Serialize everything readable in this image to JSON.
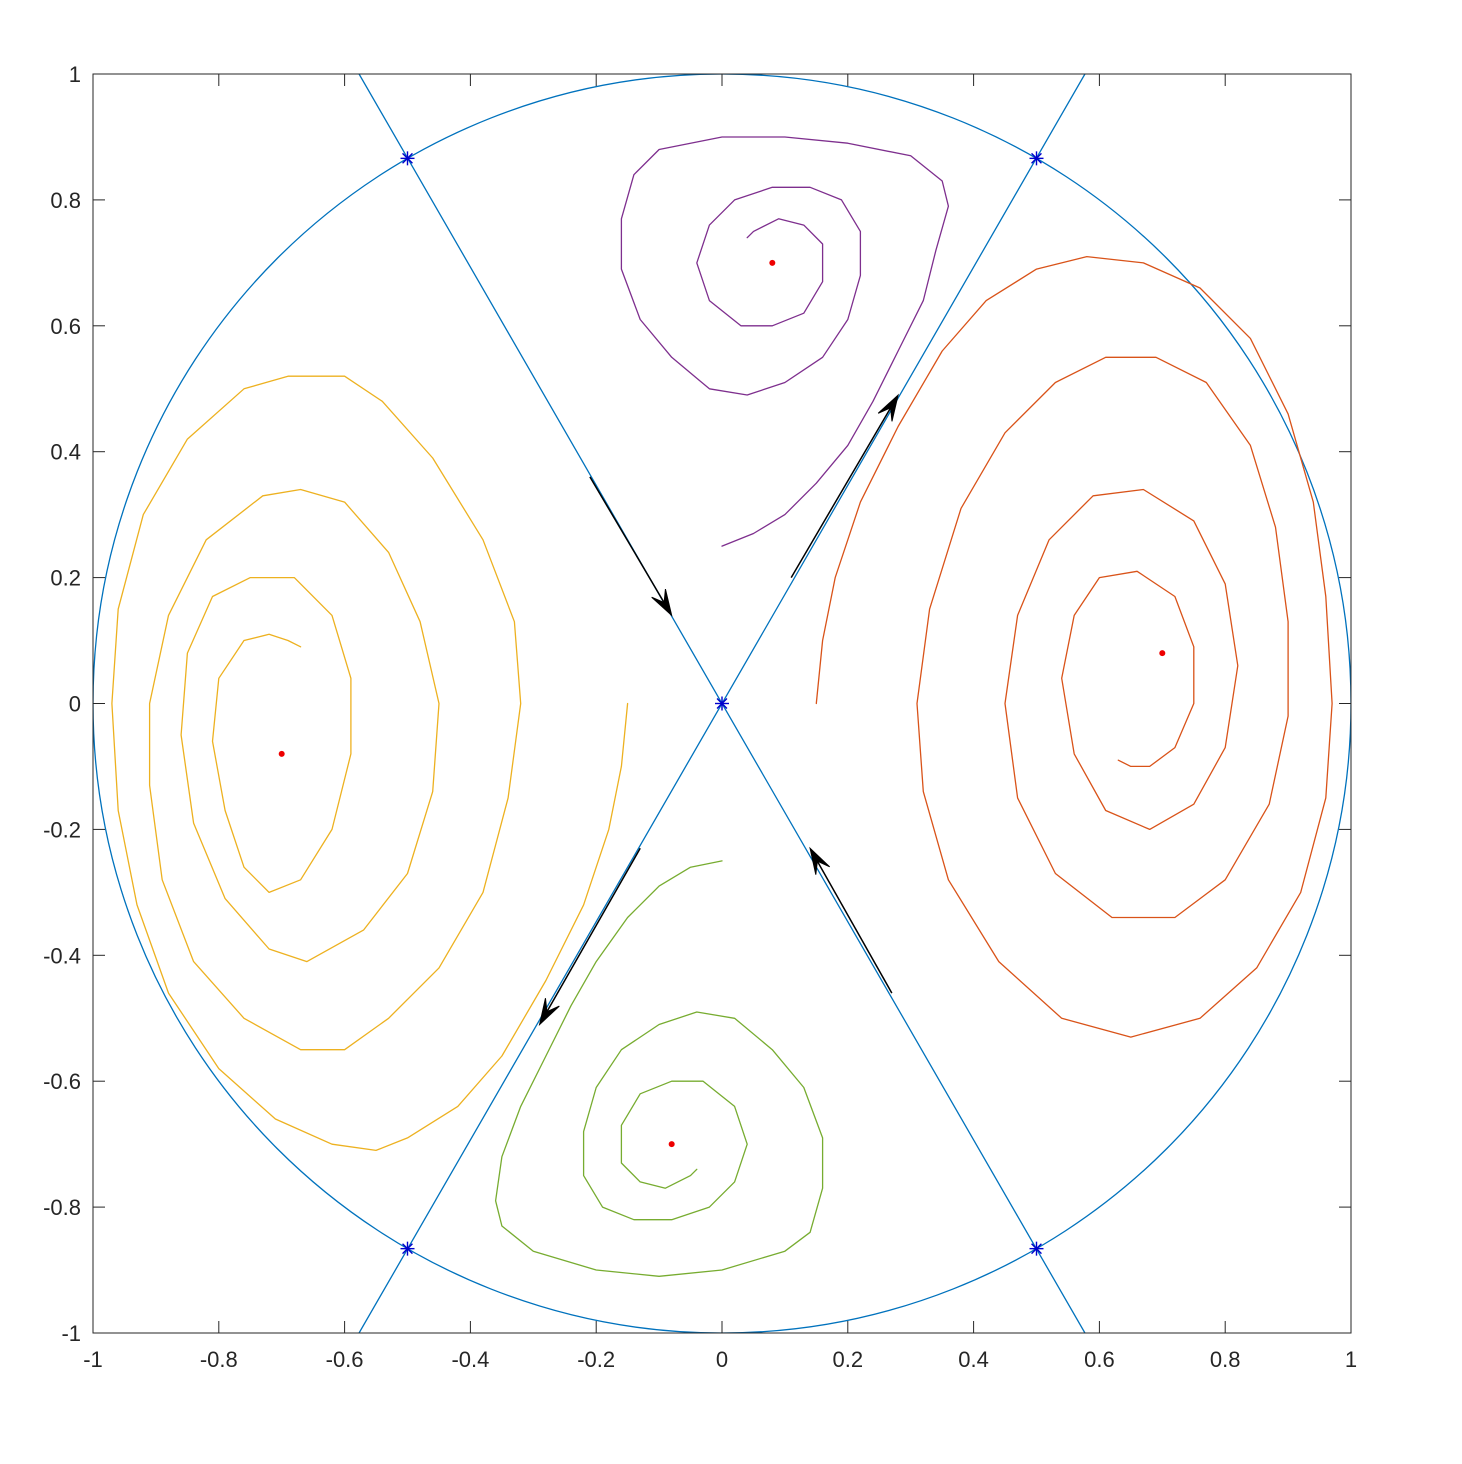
{
  "chart_data": {
    "type": "line",
    "title": "",
    "xlabel": "",
    "ylabel": "",
    "xlim": [
      -1,
      1
    ],
    "ylim": [
      -1,
      1
    ],
    "grid": false,
    "legend": "none",
    "x_ticks": [
      -1,
      -0.8,
      -0.6,
      -0.4,
      -0.2,
      0,
      0.2,
      0.4,
      0.6,
      0.8,
      1
    ],
    "y_ticks": [
      -1,
      -0.8,
      -0.6,
      -0.4,
      -0.2,
      0,
      0.2,
      0.4,
      0.6,
      0.8,
      1
    ],
    "x_tick_labels": [
      "-1",
      "-0.8",
      "-0.6",
      "-0.4",
      "-0.2",
      "0",
      "0.2",
      "0.4",
      "0.6",
      "0.8",
      "1"
    ],
    "y_tick_labels": [
      "-1",
      "-0.8",
      "-0.6",
      "-0.4",
      "-0.2",
      "0",
      "0.2",
      "0.4",
      "0.6",
      "0.8",
      "1"
    ],
    "colors": {
      "axes": "#262626",
      "boundary": "#0072bd",
      "star": "#0000cc",
      "center": "#ee0000",
      "arrow": "#000000",
      "purple": "#7e2f8e",
      "orange": "#d95319",
      "yellow": "#edb120",
      "green": "#77ac30"
    },
    "boundary_circle": {
      "center": [
        0,
        0
      ],
      "radius": 1
    },
    "separatrix_lines": [
      {
        "points": [
          [
            -0.577,
            1.0
          ],
          [
            0.577,
            -1.0
          ]
        ]
      },
      {
        "points": [
          [
            -0.577,
            -1.0
          ],
          [
            0.577,
            1.0
          ]
        ]
      }
    ],
    "stagnation_points": [
      [
        0,
        0
      ],
      [
        0.5,
        0.866
      ],
      [
        -0.5,
        0.866
      ],
      [
        0.5,
        -0.866
      ],
      [
        -0.5,
        -0.866
      ]
    ],
    "vortex_centers": [
      [
        0.08,
        0.7
      ],
      [
        0.7,
        0.08
      ],
      [
        -0.7,
        -0.08
      ],
      [
        -0.08,
        -0.7
      ]
    ],
    "arrows": [
      {
        "from": [
          -0.21,
          0.36
        ],
        "to": [
          -0.08,
          0.14
        ]
      },
      {
        "from": [
          0.11,
          0.2
        ],
        "to": [
          0.28,
          0.49
        ]
      },
      {
        "from": [
          -0.13,
          -0.23
        ],
        "to": [
          -0.29,
          -0.51
        ]
      },
      {
        "from": [
          0.27,
          -0.46
        ],
        "to": [
          0.14,
          -0.23
        ]
      }
    ],
    "series": [
      {
        "color": "purple",
        "points": [
          [
            0.0,
            0.25
          ],
          [
            0.05,
            0.27
          ],
          [
            0.1,
            0.3
          ],
          [
            0.15,
            0.35
          ],
          [
            0.2,
            0.41
          ],
          [
            0.24,
            0.48
          ],
          [
            0.28,
            0.56
          ],
          [
            0.32,
            0.64
          ],
          [
            0.34,
            0.72
          ],
          [
            0.36,
            0.79
          ],
          [
            0.35,
            0.83
          ],
          [
            0.3,
            0.87
          ],
          [
            0.2,
            0.89
          ],
          [
            0.1,
            0.9
          ],
          [
            0.0,
            0.9
          ],
          [
            -0.1,
            0.88
          ],
          [
            -0.14,
            0.84
          ],
          [
            -0.16,
            0.77
          ],
          [
            -0.16,
            0.69
          ],
          [
            -0.13,
            0.61
          ],
          [
            -0.08,
            0.55
          ],
          [
            -0.02,
            0.5
          ],
          [
            0.04,
            0.49
          ],
          [
            0.1,
            0.51
          ],
          [
            0.16,
            0.55
          ],
          [
            0.2,
            0.61
          ],
          [
            0.22,
            0.68
          ],
          [
            0.22,
            0.75
          ],
          [
            0.19,
            0.8
          ],
          [
            0.14,
            0.82
          ],
          [
            0.08,
            0.82
          ],
          [
            0.02,
            0.8
          ],
          [
            -0.02,
            0.76
          ],
          [
            -0.04,
            0.7
          ],
          [
            -0.02,
            0.64
          ],
          [
            0.03,
            0.6
          ],
          [
            0.08,
            0.6
          ],
          [
            0.13,
            0.62
          ],
          [
            0.16,
            0.67
          ],
          [
            0.16,
            0.73
          ],
          [
            0.13,
            0.76
          ],
          [
            0.09,
            0.77
          ],
          [
            0.05,
            0.75
          ],
          [
            0.04,
            0.74
          ]
        ]
      },
      {
        "color": "orange",
        "points": [
          [
            0.15,
            0.0
          ],
          [
            0.16,
            0.1
          ],
          [
            0.18,
            0.2
          ],
          [
            0.22,
            0.32
          ],
          [
            0.28,
            0.44
          ],
          [
            0.35,
            0.56
          ],
          [
            0.42,
            0.64
          ],
          [
            0.5,
            0.69
          ],
          [
            0.58,
            0.71
          ],
          [
            0.67,
            0.7
          ],
          [
            0.76,
            0.66
          ],
          [
            0.84,
            0.58
          ],
          [
            0.9,
            0.46
          ],
          [
            0.94,
            0.32
          ],
          [
            0.96,
            0.17
          ],
          [
            0.97,
            0.0
          ],
          [
            0.96,
            -0.15
          ],
          [
            0.92,
            -0.3
          ],
          [
            0.85,
            -0.42
          ],
          [
            0.76,
            -0.5
          ],
          [
            0.65,
            -0.53
          ],
          [
            0.54,
            -0.5
          ],
          [
            0.44,
            -0.41
          ],
          [
            0.36,
            -0.28
          ],
          [
            0.32,
            -0.14
          ],
          [
            0.31,
            0.0
          ],
          [
            0.33,
            0.15
          ],
          [
            0.38,
            0.31
          ],
          [
            0.45,
            0.43
          ],
          [
            0.53,
            0.51
          ],
          [
            0.61,
            0.55
          ],
          [
            0.69,
            0.55
          ],
          [
            0.77,
            0.51
          ],
          [
            0.84,
            0.41
          ],
          [
            0.88,
            0.28
          ],
          [
            0.9,
            0.13
          ],
          [
            0.9,
            -0.02
          ],
          [
            0.87,
            -0.16
          ],
          [
            0.8,
            -0.28
          ],
          [
            0.72,
            -0.34
          ],
          [
            0.62,
            -0.34
          ],
          [
            0.53,
            -0.27
          ],
          [
            0.47,
            -0.15
          ],
          [
            0.45,
            0.0
          ],
          [
            0.47,
            0.14
          ],
          [
            0.52,
            0.26
          ],
          [
            0.59,
            0.33
          ],
          [
            0.67,
            0.34
          ],
          [
            0.75,
            0.29
          ],
          [
            0.8,
            0.19
          ],
          [
            0.82,
            0.06
          ],
          [
            0.8,
            -0.07
          ],
          [
            0.75,
            -0.16
          ],
          [
            0.68,
            -0.2
          ],
          [
            0.61,
            -0.17
          ],
          [
            0.56,
            -0.08
          ],
          [
            0.54,
            0.04
          ],
          [
            0.56,
            0.14
          ],
          [
            0.6,
            0.2
          ],
          [
            0.66,
            0.21
          ],
          [
            0.72,
            0.17
          ],
          [
            0.75,
            0.09
          ],
          [
            0.75,
            -0.0
          ],
          [
            0.72,
            -0.07
          ],
          [
            0.68,
            -0.1
          ],
          [
            0.65,
            -0.1
          ],
          [
            0.63,
            -0.09
          ]
        ]
      },
      {
        "color": "yellow",
        "points": [
          [
            -0.15,
            0.0
          ],
          [
            -0.16,
            -0.1
          ],
          [
            -0.18,
            -0.2
          ],
          [
            -0.22,
            -0.32
          ],
          [
            -0.28,
            -0.44
          ],
          [
            -0.35,
            -0.56
          ],
          [
            -0.42,
            -0.64
          ],
          [
            -0.5,
            -0.69
          ],
          [
            -0.55,
            -0.71
          ],
          [
            -0.62,
            -0.7
          ],
          [
            -0.71,
            -0.66
          ],
          [
            -0.8,
            -0.58
          ],
          [
            -0.88,
            -0.46
          ],
          [
            -0.93,
            -0.32
          ],
          [
            -0.96,
            -0.17
          ],
          [
            -0.97,
            0.0
          ],
          [
            -0.96,
            0.15
          ],
          [
            -0.92,
            0.3
          ],
          [
            -0.85,
            0.42
          ],
          [
            -0.76,
            0.5
          ],
          [
            -0.69,
            0.52
          ],
          [
            -0.6,
            0.52
          ],
          [
            -0.54,
            0.48
          ],
          [
            -0.46,
            0.39
          ],
          [
            -0.38,
            0.26
          ],
          [
            -0.33,
            0.13
          ],
          [
            -0.32,
            0.0
          ],
          [
            -0.34,
            -0.15
          ],
          [
            -0.38,
            -0.3
          ],
          [
            -0.45,
            -0.42
          ],
          [
            -0.53,
            -0.5
          ],
          [
            -0.6,
            -0.55
          ],
          [
            -0.67,
            -0.55
          ],
          [
            -0.76,
            -0.5
          ],
          [
            -0.84,
            -0.41
          ],
          [
            -0.89,
            -0.28
          ],
          [
            -0.91,
            -0.13
          ],
          [
            -0.91,
            0.0
          ],
          [
            -0.88,
            0.14
          ],
          [
            -0.82,
            0.26
          ],
          [
            -0.73,
            0.33
          ],
          [
            -0.67,
            0.34
          ],
          [
            -0.6,
            0.32
          ],
          [
            -0.53,
            0.24
          ],
          [
            -0.48,
            0.13
          ],
          [
            -0.45,
            0.0
          ],
          [
            -0.46,
            -0.14
          ],
          [
            -0.5,
            -0.27
          ],
          [
            -0.57,
            -0.36
          ],
          [
            -0.66,
            -0.41
          ],
          [
            -0.72,
            -0.39
          ],
          [
            -0.79,
            -0.31
          ],
          [
            -0.84,
            -0.19
          ],
          [
            -0.86,
            -0.05
          ],
          [
            -0.85,
            0.08
          ],
          [
            -0.81,
            0.17
          ],
          [
            -0.75,
            0.2
          ],
          [
            -0.68,
            0.2
          ],
          [
            -0.62,
            0.14
          ],
          [
            -0.59,
            0.04
          ],
          [
            -0.59,
            -0.08
          ],
          [
            -0.62,
            -0.2
          ],
          [
            -0.67,
            -0.28
          ],
          [
            -0.72,
            -0.3
          ],
          [
            -0.76,
            -0.26
          ],
          [
            -0.79,
            -0.17
          ],
          [
            -0.81,
            -0.06
          ],
          [
            -0.8,
            0.04
          ],
          [
            -0.76,
            0.1
          ],
          [
            -0.72,
            0.11
          ],
          [
            -0.69,
            0.1
          ],
          [
            -0.67,
            0.09
          ]
        ]
      },
      {
        "color": "green",
        "points": [
          [
            0.0,
            -0.25
          ],
          [
            -0.05,
            -0.26
          ],
          [
            -0.1,
            -0.29
          ],
          [
            -0.15,
            -0.34
          ],
          [
            -0.2,
            -0.41
          ],
          [
            -0.24,
            -0.48
          ],
          [
            -0.28,
            -0.56
          ],
          [
            -0.32,
            -0.64
          ],
          [
            -0.35,
            -0.72
          ],
          [
            -0.36,
            -0.79
          ],
          [
            -0.35,
            -0.83
          ],
          [
            -0.3,
            -0.87
          ],
          [
            -0.2,
            -0.9
          ],
          [
            -0.1,
            -0.91
          ],
          [
            0.0,
            -0.9
          ],
          [
            0.1,
            -0.87
          ],
          [
            0.14,
            -0.84
          ],
          [
            0.16,
            -0.77
          ],
          [
            0.16,
            -0.69
          ],
          [
            0.13,
            -0.61
          ],
          [
            0.08,
            -0.55
          ],
          [
            0.02,
            -0.5
          ],
          [
            -0.04,
            -0.49
          ],
          [
            -0.1,
            -0.51
          ],
          [
            -0.16,
            -0.55
          ],
          [
            -0.2,
            -0.61
          ],
          [
            -0.22,
            -0.68
          ],
          [
            -0.22,
            -0.75
          ],
          [
            -0.19,
            -0.8
          ],
          [
            -0.14,
            -0.82
          ],
          [
            -0.08,
            -0.82
          ],
          [
            -0.02,
            -0.8
          ],
          [
            0.02,
            -0.76
          ],
          [
            0.04,
            -0.7
          ],
          [
            0.02,
            -0.64
          ],
          [
            -0.03,
            -0.6
          ],
          [
            -0.08,
            -0.6
          ],
          [
            -0.13,
            -0.62
          ],
          [
            -0.16,
            -0.67
          ],
          [
            -0.16,
            -0.73
          ],
          [
            -0.13,
            -0.76
          ],
          [
            -0.09,
            -0.77
          ],
          [
            -0.05,
            -0.75
          ],
          [
            -0.04,
            -0.74
          ]
        ]
      }
    ]
  }
}
